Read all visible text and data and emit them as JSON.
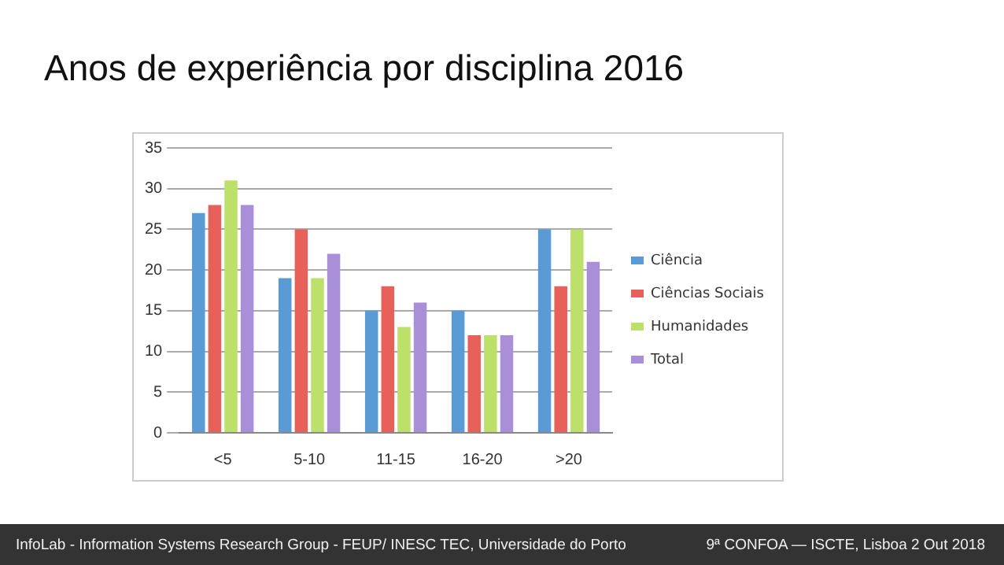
{
  "chart_data": {
    "type": "bar",
    "title": "Anos de experiência por disciplina 2016",
    "categories": [
      "<5",
      "5-10",
      "11-15",
      "16-20",
      ">20"
    ],
    "series": [
      {
        "name": "Ciência",
        "color": "#5b9bd5",
        "values": [
          27,
          19,
          15,
          15,
          25
        ]
      },
      {
        "name": "Ciências Sociais",
        "color": "#e8605a",
        "values": [
          28,
          25,
          18,
          12,
          18
        ]
      },
      {
        "name": "Humanidades",
        "color": "#bde06a",
        "values": [
          31,
          19,
          13,
          12,
          25
        ]
      },
      {
        "name": "Total",
        "color": "#a88fd8",
        "values": [
          28,
          22,
          16,
          12,
          21
        ]
      }
    ],
    "ylim": [
      0,
      35
    ],
    "yticks": [
      0,
      5,
      10,
      15,
      20,
      25,
      30,
      35
    ],
    "grid": "y",
    "legend": "right",
    "annotations": [
      "InfoLab - Information Systems Research Group - FEUP/ INESC TEC, Universidade do Porto",
      "9ª CONFOA — ISCTE, Lisboa  2 Out 2018"
    ]
  }
}
